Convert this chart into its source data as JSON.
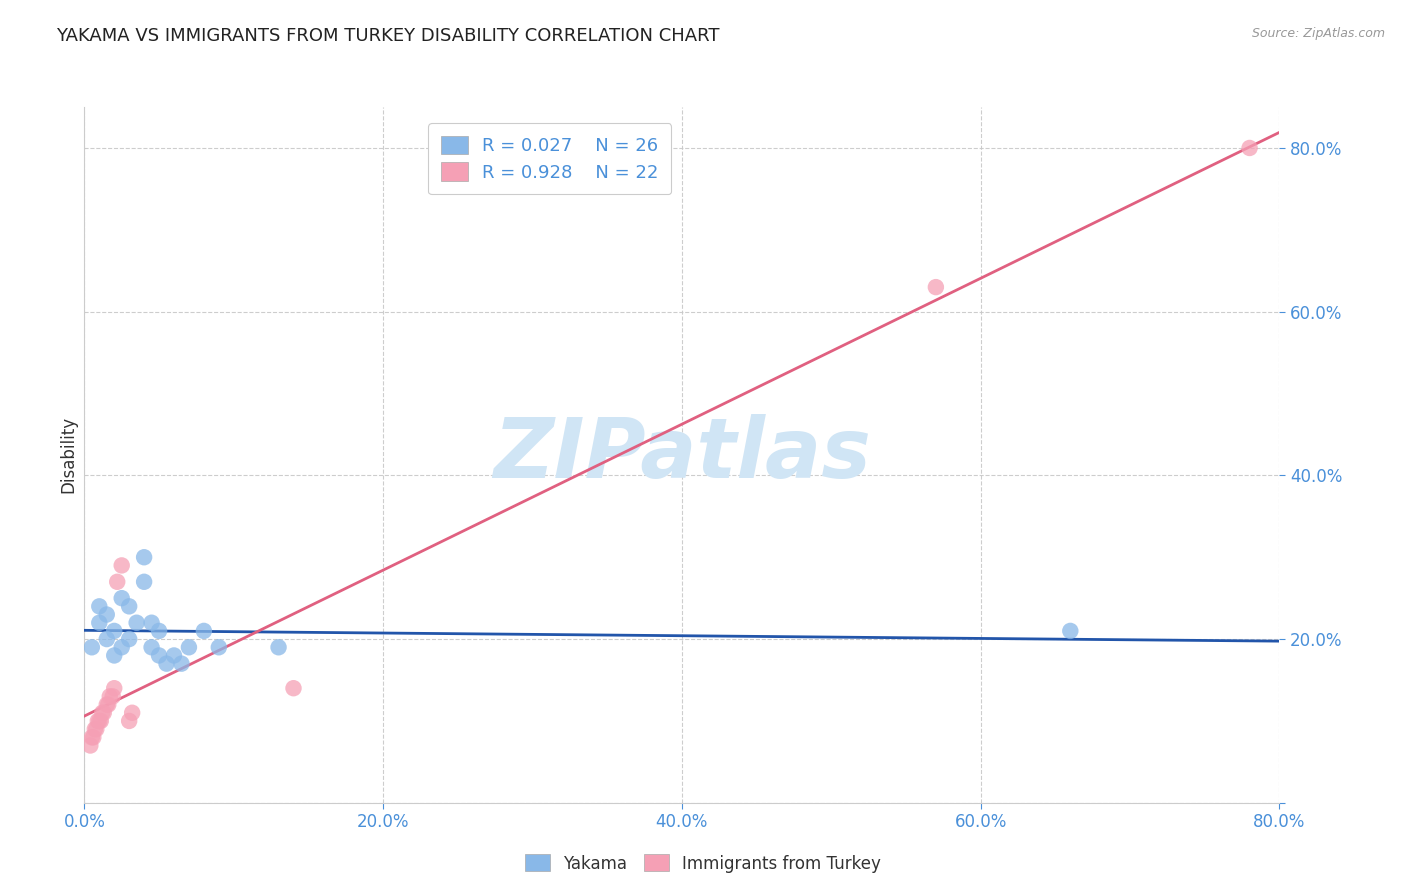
{
  "title": "YAKAMA VS IMMIGRANTS FROM TURKEY DISABILITY CORRELATION CHART",
  "source_text": "Source: ZipAtlas.com",
  "ylabel": "Disability",
  "xlim": [
    0.0,
    0.8
  ],
  "ylim": [
    0.0,
    0.85
  ],
  "xticks": [
    0.0,
    0.2,
    0.4,
    0.6,
    0.8
  ],
  "yticks": [
    0.0,
    0.2,
    0.4,
    0.6,
    0.8
  ],
  "xticklabels": [
    "0.0%",
    "20.0%",
    "40.0%",
    "60.0%",
    "80.0%"
  ],
  "yticklabels": [
    "",
    "20.0%",
    "40.0%",
    "60.0%",
    "80.0%"
  ],
  "grid_color": "#c8c8c8",
  "background_color": "#ffffff",
  "title_color": "#222222",
  "axis_label_color": "#333333",
  "tick_color": "#4a90d9",
  "source_color": "#999999",
  "legend_R1": "R = 0.027",
  "legend_N1": "N = 26",
  "legend_R2": "R = 0.928",
  "legend_N2": "N = 22",
  "legend_text_color": "#4a90d9",
  "yakama_color": "#89b8e8",
  "turkey_color": "#f5a0b5",
  "yakama_line_color": "#2255aa",
  "turkey_line_color": "#e06080",
  "yakama_x": [
    0.005,
    0.01,
    0.01,
    0.015,
    0.015,
    0.02,
    0.02,
    0.025,
    0.025,
    0.03,
    0.03,
    0.035,
    0.04,
    0.04,
    0.045,
    0.045,
    0.05,
    0.05,
    0.055,
    0.06,
    0.065,
    0.07,
    0.08,
    0.09,
    0.13,
    0.66
  ],
  "yakama_y": [
    0.19,
    0.22,
    0.24,
    0.2,
    0.23,
    0.18,
    0.21,
    0.19,
    0.25,
    0.2,
    0.24,
    0.22,
    0.27,
    0.3,
    0.22,
    0.19,
    0.18,
    0.21,
    0.17,
    0.18,
    0.17,
    0.19,
    0.21,
    0.19,
    0.19,
    0.21
  ],
  "turkey_x": [
    0.004,
    0.005,
    0.006,
    0.007,
    0.008,
    0.009,
    0.01,
    0.011,
    0.012,
    0.013,
    0.015,
    0.016,
    0.017,
    0.019,
    0.02,
    0.022,
    0.025,
    0.03,
    0.032,
    0.14,
    0.57,
    0.78
  ],
  "turkey_y": [
    0.07,
    0.08,
    0.08,
    0.09,
    0.09,
    0.1,
    0.1,
    0.1,
    0.11,
    0.11,
    0.12,
    0.12,
    0.13,
    0.13,
    0.14,
    0.27,
    0.29,
    0.1,
    0.11,
    0.14,
    0.63,
    0.8
  ],
  "watermark_text": "ZIPatlas",
  "watermark_color": "#d0e5f5",
  "series1_label": "Yakama",
  "series2_label": "Immigrants from Turkey"
}
